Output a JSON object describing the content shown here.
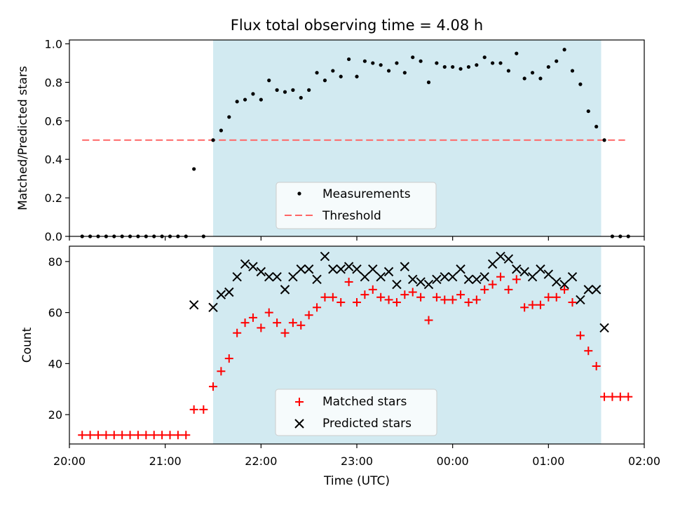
{
  "title": "Flux total observing time = 4.08 h",
  "colors": {
    "shade": "#add8e6",
    "threshold": "#ff6666",
    "matched": "#ff0000",
    "predicted": "#000000",
    "measurements": "#000000"
  },
  "chart_data": [
    {
      "type": "scatter",
      "panel": "top",
      "ylabel": "Matched/Predicted stars",
      "xlim": [
        "20:00",
        "02:00"
      ],
      "ylim": [
        0,
        1.02
      ],
      "yticks": [
        "0.0",
        "0.2",
        "0.4",
        "0.6",
        "0.8",
        "1.0"
      ],
      "shaded_interval": [
        "21:30",
        "01:33"
      ],
      "legend": {
        "location": "lower-center",
        "entries": [
          "Measurements",
          "Threshold"
        ]
      },
      "threshold": {
        "name": "Threshold",
        "y": 0.5,
        "x_range": [
          "20:08",
          "01:48"
        ]
      },
      "series": [
        {
          "name": "Measurements",
          "marker": "dot",
          "x": [
            "20:08",
            "20:13",
            "20:18",
            "20:23",
            "20:28",
            "20:33",
            "20:38",
            "20:43",
            "20:48",
            "20:53",
            "20:58",
            "21:03",
            "21:08",
            "21:13",
            "21:18",
            "21:24",
            "21:30",
            "21:35",
            "21:40",
            "21:45",
            "21:50",
            "21:55",
            "22:00",
            "22:05",
            "22:10",
            "22:15",
            "22:20",
            "22:25",
            "22:30",
            "22:35",
            "22:40",
            "22:45",
            "22:50",
            "22:55",
            "23:00",
            "23:05",
            "23:10",
            "23:15",
            "23:20",
            "23:25",
            "23:30",
            "23:35",
            "23:40",
            "23:45",
            "23:50",
            "23:55",
            "00:00",
            "00:05",
            "00:10",
            "00:15",
            "00:20",
            "00:25",
            "00:30",
            "00:35",
            "00:40",
            "00:45",
            "00:50",
            "00:55",
            "01:00",
            "01:05",
            "01:10",
            "01:15",
            "01:20",
            "01:25",
            "01:30",
            "01:35",
            "01:40",
            "01:45",
            "01:50"
          ],
          "y": [
            0,
            0,
            0,
            0,
            0,
            0,
            0,
            0,
            0,
            0,
            0,
            0,
            0,
            0,
            0.35,
            0,
            0.5,
            0.55,
            0.62,
            0.7,
            0.71,
            0.74,
            0.71,
            0.81,
            0.76,
            0.75,
            0.76,
            0.72,
            0.76,
            0.85,
            0.81,
            0.86,
            0.83,
            0.92,
            0.83,
            0.91,
            0.9,
            0.89,
            0.86,
            0.9,
            0.85,
            0.93,
            0.91,
            0.8,
            0.9,
            0.88,
            0.88,
            0.87,
            0.88,
            0.89,
            0.93,
            0.9,
            0.9,
            0.86,
            0.95,
            0.82,
            0.85,
            0.82,
            0.88,
            0.91,
            0.97,
            0.86,
            0.79,
            0.65,
            0.57,
            0.5,
            0,
            0,
            0
          ]
        }
      ]
    },
    {
      "type": "scatter",
      "panel": "bottom",
      "xlabel": "Time (UTC)",
      "ylabel": "Count",
      "xlim": [
        "20:00",
        "02:00"
      ],
      "ylim": [
        8.5,
        86
      ],
      "xticks": [
        "20:00",
        "21:00",
        "22:00",
        "23:00",
        "00:00",
        "01:00",
        "02:00"
      ],
      "yticks": [
        "20",
        "40",
        "60",
        "80"
      ],
      "shaded_interval": [
        "21:30",
        "01:33"
      ],
      "legend": {
        "location": "lower-center",
        "entries": [
          "Matched stars",
          "Predicted stars"
        ]
      },
      "series": [
        {
          "name": "Matched stars",
          "marker": "plus",
          "x": [
            "20:08",
            "20:13",
            "20:18",
            "20:23",
            "20:28",
            "20:33",
            "20:38",
            "20:43",
            "20:48",
            "20:53",
            "20:58",
            "21:03",
            "21:08",
            "21:13",
            "21:18",
            "21:24",
            "21:30",
            "21:35",
            "21:40",
            "21:45",
            "21:50",
            "21:55",
            "22:00",
            "22:05",
            "22:10",
            "22:15",
            "22:20",
            "22:25",
            "22:30",
            "22:35",
            "22:40",
            "22:45",
            "22:50",
            "22:55",
            "23:00",
            "23:05",
            "23:10",
            "23:15",
            "23:20",
            "23:25",
            "23:30",
            "23:35",
            "23:40",
            "23:45",
            "23:50",
            "23:55",
            "00:00",
            "00:05",
            "00:10",
            "00:15",
            "00:20",
            "00:25",
            "00:30",
            "00:35",
            "00:40",
            "00:45",
            "00:50",
            "00:55",
            "01:00",
            "01:05",
            "01:10",
            "01:15",
            "01:20",
            "01:25",
            "01:30",
            "01:35",
            "01:40",
            "01:45",
            "01:50"
          ],
          "y": [
            12,
            12,
            12,
            12,
            12,
            12,
            12,
            12,
            12,
            12,
            12,
            12,
            12,
            12,
            22,
            22,
            31,
            37,
            42,
            52,
            56,
            58,
            54,
            60,
            56,
            52,
            56,
            55,
            59,
            62,
            66,
            66,
            64,
            72,
            64,
            67,
            69,
            66,
            65,
            64,
            67,
            68,
            66,
            57,
            66,
            65,
            65,
            67,
            64,
            65,
            69,
            71,
            74,
            69,
            73,
            62,
            63,
            63,
            66,
            66,
            69,
            64,
            51,
            45,
            39,
            27,
            27,
            27,
            27
          ]
        },
        {
          "name": "Predicted stars",
          "marker": "x",
          "x": [
            "21:18",
            "21:30",
            "21:35",
            "21:40",
            "21:45",
            "21:50",
            "21:55",
            "22:00",
            "22:05",
            "22:10",
            "22:15",
            "22:20",
            "22:25",
            "22:30",
            "22:35",
            "22:40",
            "22:45",
            "22:50",
            "22:55",
            "23:00",
            "23:05",
            "23:10",
            "23:15",
            "23:20",
            "23:25",
            "23:30",
            "23:35",
            "23:40",
            "23:45",
            "23:50",
            "23:55",
            "00:00",
            "00:05",
            "00:10",
            "00:15",
            "00:20",
            "00:25",
            "00:30",
            "00:35",
            "00:40",
            "00:45",
            "00:50",
            "00:55",
            "01:00",
            "01:05",
            "01:10",
            "01:15",
            "01:20",
            "01:25",
            "01:30",
            "01:35"
          ],
          "y": [
            63,
            62,
            67,
            68,
            74,
            79,
            78,
            76,
            74,
            74,
            69,
            74,
            77,
            77,
            73,
            82,
            77,
            77,
            78,
            77,
            74,
            77,
            74,
            76,
            71,
            78,
            73,
            72,
            71,
            73,
            74,
            74,
            77,
            73,
            73,
            74,
            79,
            82,
            81,
            77,
            76,
            74,
            77,
            75,
            72,
            71,
            74,
            65,
            69,
            69,
            54
          ]
        }
      ]
    }
  ]
}
